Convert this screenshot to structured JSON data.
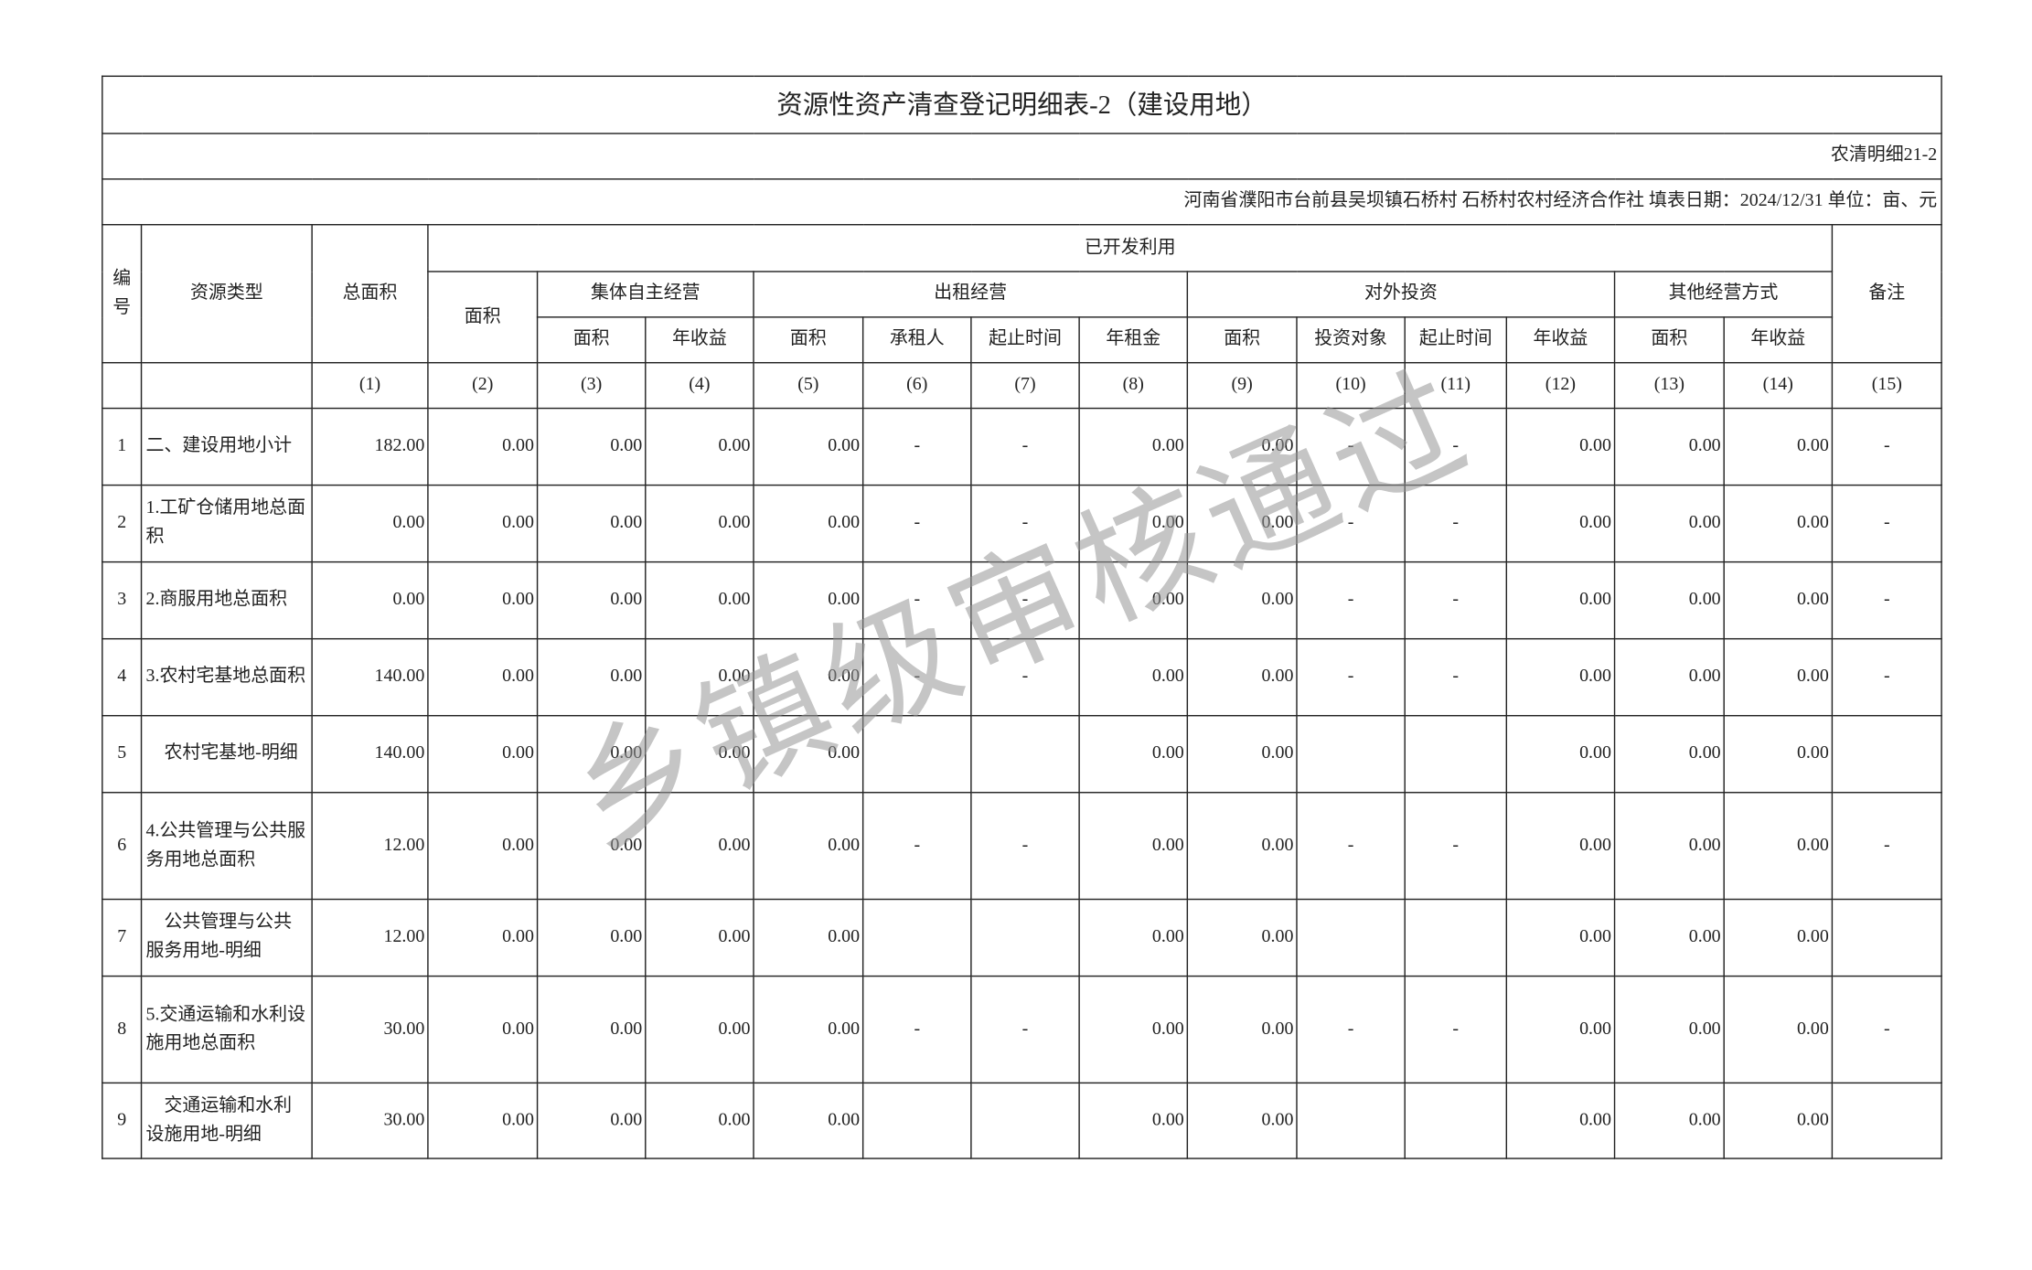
{
  "title": "资源性资产清查登记明细表-2（建设用地）",
  "form_code": "农清明细21-2",
  "info": "河南省濮阳市台前县吴坝镇石桥村 石桥村农村经济合作社 填表日期：2024/12/31 单位：亩、元",
  "watermark": "乡镇级审核通过",
  "headers": {
    "no": "编号",
    "type": "资源类型",
    "total": "总面积",
    "developed": "已开发利用",
    "area": "面积",
    "collective": "集体自主经营",
    "lease": "出租经营",
    "invest": "对外投资",
    "other": "其他经营方式",
    "remark": "备注",
    "c_area": "面积",
    "c_income": "年收益",
    "l_area": "面积",
    "l_tenant": "承租人",
    "l_period": "起止时间",
    "l_rent": "年租金",
    "i_area": "面积",
    "i_target": "投资对象",
    "i_period": "起止时间",
    "i_income": "年收益",
    "o_area": "面积",
    "o_income": "年收益"
  },
  "col_numbers": [
    "(1)",
    "(2)",
    "(3)",
    "(4)",
    "(5)",
    "(6)",
    "(7)",
    "(8)",
    "(9)",
    "(10)",
    "(11)",
    "(12)",
    "(13)",
    "(14)",
    "(15)"
  ],
  "rows": [
    {
      "no": "1",
      "name": "二、建设用地小计",
      "indent": false,
      "cells": [
        "182.00",
        "0.00",
        "0.00",
        "0.00",
        "0.00",
        "-",
        "-",
        "0.00",
        "0.00",
        "-",
        "-",
        "0.00",
        "0.00",
        "0.00",
        "-"
      ]
    },
    {
      "no": "2",
      "name": "1.工矿仓储用地总面积",
      "indent": false,
      "cells": [
        "0.00",
        "0.00",
        "0.00",
        "0.00",
        "0.00",
        "-",
        "-",
        "0.00",
        "0.00",
        "-",
        "-",
        "0.00",
        "0.00",
        "0.00",
        "-"
      ]
    },
    {
      "no": "3",
      "name": "2.商服用地总面积",
      "indent": false,
      "cells": [
        "0.00",
        "0.00",
        "0.00",
        "0.00",
        "0.00",
        "-",
        "-",
        "0.00",
        "0.00",
        "-",
        "-",
        "0.00",
        "0.00",
        "0.00",
        "-"
      ]
    },
    {
      "no": "4",
      "name": "3.农村宅基地总面积",
      "indent": false,
      "cells": [
        "140.00",
        "0.00",
        "0.00",
        "0.00",
        "0.00",
        "-",
        "-",
        "0.00",
        "0.00",
        "-",
        "-",
        "0.00",
        "0.00",
        "0.00",
        "-"
      ]
    },
    {
      "no": "5",
      "name": "农村宅基地-明细",
      "indent": true,
      "cells": [
        "140.00",
        "0.00",
        "0.00",
        "0.00",
        "0.00",
        "",
        "",
        "0.00",
        "0.00",
        "",
        "",
        "0.00",
        "0.00",
        "0.00",
        ""
      ]
    },
    {
      "no": "6",
      "name": "4.公共管理与公共服务用地总面积",
      "indent": false,
      "cells": [
        "12.00",
        "0.00",
        "0.00",
        "0.00",
        "0.00",
        "-",
        "-",
        "0.00",
        "0.00",
        "-",
        "-",
        "0.00",
        "0.00",
        "0.00",
        "-"
      ]
    },
    {
      "no": "7",
      "name": "公共管理与公共服务用地-明细",
      "indent": true,
      "cells": [
        "12.00",
        "0.00",
        "0.00",
        "0.00",
        "0.00",
        "",
        "",
        "0.00",
        "0.00",
        "",
        "",
        "0.00",
        "0.00",
        "0.00",
        ""
      ]
    },
    {
      "no": "8",
      "name": "5.交通运输和水利设施用地总面积",
      "indent": false,
      "cells": [
        "30.00",
        "0.00",
        "0.00",
        "0.00",
        "0.00",
        "-",
        "-",
        "0.00",
        "0.00",
        "-",
        "-",
        "0.00",
        "0.00",
        "0.00",
        "-"
      ]
    },
    {
      "no": "9",
      "name": "交通运输和水利设施用地-明细",
      "indent": true,
      "cells": [
        "30.00",
        "0.00",
        "0.00",
        "0.00",
        "0.00",
        "",
        "",
        "0.00",
        "0.00",
        "",
        "",
        "0.00",
        "0.00",
        "0.00",
        ""
      ]
    }
  ]
}
